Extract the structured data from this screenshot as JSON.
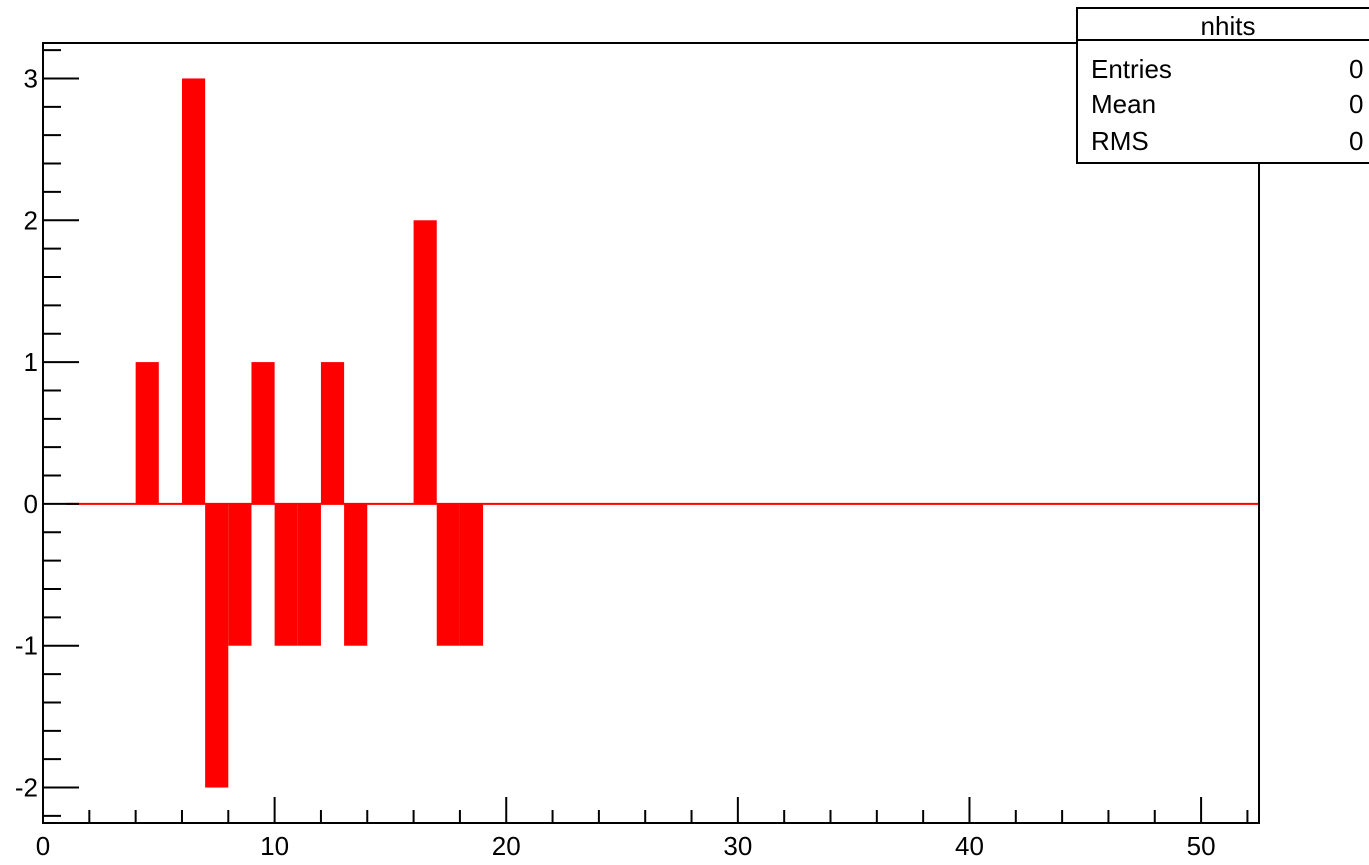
{
  "chart_data": {
    "type": "bar",
    "title": "",
    "xlabel": "",
    "ylabel": "",
    "xlim": [
      0,
      52.5
    ],
    "ylim": [
      -2.25,
      3.25
    ],
    "grid": false,
    "bar_color": "#ff0000",
    "x_ticks": [
      0,
      10,
      20,
      30,
      40,
      50
    ],
    "y_ticks": [
      -2,
      -1,
      0,
      1,
      2,
      3
    ],
    "x_tick_labels": [
      "0",
      "10",
      "20",
      "30",
      "40",
      "50"
    ],
    "y_tick_labels": [
      "-2",
      "-1",
      "0",
      "1",
      "2",
      "3"
    ],
    "bins": [
      {
        "x_low": 1,
        "x_high": 2,
        "value": 0
      },
      {
        "x_low": 2,
        "x_high": 3,
        "value": 0
      },
      {
        "x_low": 3,
        "x_high": 4,
        "value": 0
      },
      {
        "x_low": 4,
        "x_high": 5,
        "value": 1
      },
      {
        "x_low": 5,
        "x_high": 6,
        "value": 0
      },
      {
        "x_low": 6,
        "x_high": 7,
        "value": 3
      },
      {
        "x_low": 7,
        "x_high": 8,
        "value": -2
      },
      {
        "x_low": 8,
        "x_high": 9,
        "value": -1
      },
      {
        "x_low": 9,
        "x_high": 10,
        "value": 1
      },
      {
        "x_low": 10,
        "x_high": 11,
        "value": -1
      },
      {
        "x_low": 11,
        "x_high": 12,
        "value": -1
      },
      {
        "x_low": 12,
        "x_high": 13,
        "value": 1
      },
      {
        "x_low": 13,
        "x_high": 14,
        "value": -1
      },
      {
        "x_low": 14,
        "x_high": 15,
        "value": 0
      },
      {
        "x_low": 15,
        "x_high": 16,
        "value": 0
      },
      {
        "x_low": 16,
        "x_high": 17,
        "value": 2
      },
      {
        "x_low": 17,
        "x_high": 18,
        "value": -1
      },
      {
        "x_low": 18,
        "x_high": 19,
        "value": -1
      }
    ],
    "zero_line_to": 52.5,
    "stats_box": {
      "name": "nhits",
      "rows": [
        {
          "label": "Entries",
          "value": "0"
        },
        {
          "label": "Mean",
          "value": "0"
        },
        {
          "label": "RMS",
          "value": "0"
        }
      ]
    }
  }
}
